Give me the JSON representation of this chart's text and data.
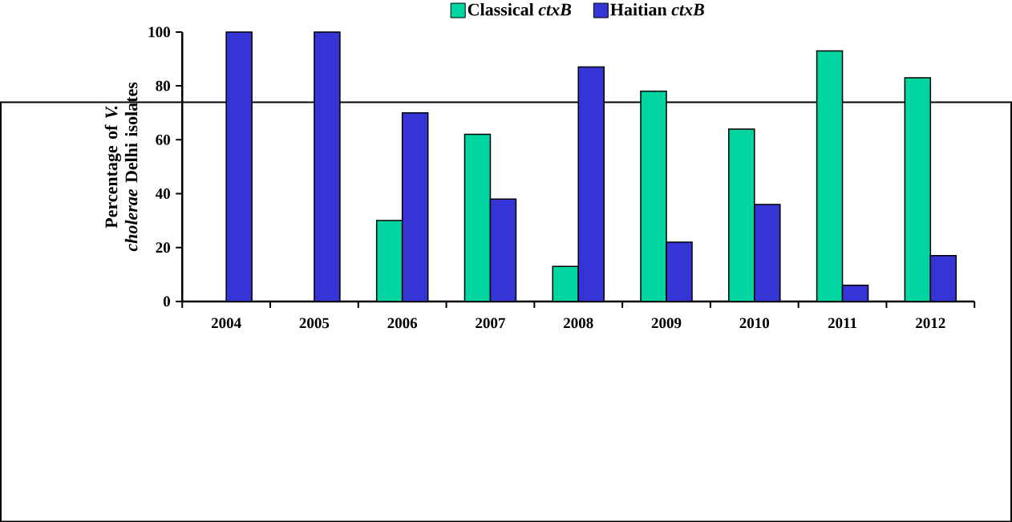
{
  "chart_data": {
    "type": "bar",
    "ylabel": "Percentage of *V. cholerae* Delhi isolates",
    "categories": [
      "2004",
      "2005",
      "2006",
      "2007",
      "2008",
      "2009",
      "2010",
      "2011",
      "2012"
    ],
    "series": [
      {
        "name": "Classical *ctxB*",
        "color": "#00d4a0",
        "values": [
          null,
          null,
          30,
          62,
          13,
          78,
          64,
          93,
          83
        ]
      },
      {
        "name": "Haitian *ctxB*",
        "color": "#3535d5",
        "values": [
          100,
          100,
          70,
          38,
          87,
          22,
          36,
          6,
          17
        ]
      }
    ],
    "ylim": [
      0,
      100
    ],
    "yticks": [
      0,
      20,
      40,
      60,
      80,
      100
    ],
    "grid": false,
    "legend": "top"
  }
}
